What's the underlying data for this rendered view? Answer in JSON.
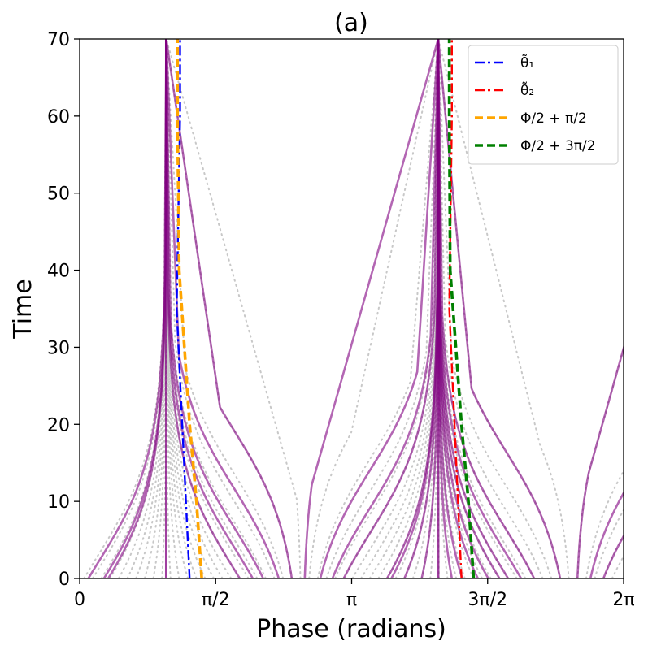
{
  "chart_data": {
    "type": "line",
    "title": "(a)",
    "xlabel": "Phase (radians)",
    "ylabel": "Time",
    "xlim": [
      0,
      6.2832
    ],
    "ylim": [
      0,
      70
    ],
    "grid": false,
    "x_ticks": [
      {
        "value": 0,
        "label": "0"
      },
      {
        "value": 1.5708,
        "label": "π/2"
      },
      {
        "value": 3.1416,
        "label": "π"
      },
      {
        "value": 4.7124,
        "label": "3π/2"
      },
      {
        "value": 6.2832,
        "label": "2π"
      }
    ],
    "y_ticks": [
      {
        "value": 0,
        "label": "0"
      },
      {
        "value": 10,
        "label": "10"
      },
      {
        "value": 20,
        "label": "20"
      },
      {
        "value": 30,
        "label": "30"
      },
      {
        "value": 40,
        "label": "40"
      },
      {
        "value": 50,
        "label": "50"
      },
      {
        "value": 60,
        "label": "60"
      },
      {
        "value": 70,
        "label": "70"
      }
    ],
    "legend_position": "top-right",
    "legend": [
      {
        "label": "θ̃₁",
        "color": "#0000ff",
        "style": "dashdot"
      },
      {
        "label": "θ̃₂",
        "color": "#ff0000",
        "style": "dashdot"
      },
      {
        "label": "Φ/2 + π/2",
        "color": "#ffa500",
        "style": "dashed"
      },
      {
        "label": "Φ/2 + 3π/2",
        "color": "#008000",
        "style": "dashed"
      }
    ],
    "attractors": [
      1.0,
      4.1416
    ],
    "background_trajectories": {
      "color": "#c8c8c8",
      "style": "dotted",
      "start_phases": [
        0.05,
        0.15,
        0.25,
        0.35,
        0.45,
        0.55,
        0.65,
        0.75,
        0.85,
        0.95,
        1.05,
        1.15,
        1.25,
        1.35,
        1.45,
        1.55,
        1.65,
        1.75,
        1.85,
        1.95,
        2.05,
        2.15,
        2.25,
        2.35,
        2.45,
        2.55,
        2.65,
        2.75,
        2.85,
        2.95,
        3.05,
        3.15,
        3.25,
        3.35,
        3.45,
        3.55,
        3.65,
        3.75,
        3.85,
        3.95,
        4.05,
        4.15,
        4.25,
        4.35,
        4.45,
        4.55,
        4.65,
        4.75,
        4.85,
        4.95,
        5.05,
        5.15,
        5.25,
        5.35,
        5.45,
        5.55,
        5.65,
        5.75,
        5.85,
        5.95,
        6.05,
        6.15
      ]
    },
    "highlighted_trajectories": {
      "color": "#800080",
      "start_phases": [
        0.1,
        0.28,
        0.33,
        1.85,
        2.0,
        2.12,
        2.3,
        2.45,
        2.6,
        2.78,
        2.92,
        3.05,
        3.55,
        3.6,
        3.75,
        3.95,
        4.3,
        4.42,
        4.6,
        4.72,
        4.85,
        4.95,
        5.1,
        5.25,
        5.55,
        5.75,
        5.9,
        6.05
      ]
    },
    "series": [
      {
        "name": "θ̃₁",
        "color": "#0000ff",
        "x": [
          1.27,
          1.12,
          1.16,
          1.16
        ],
        "y": [
          0,
          35,
          60,
          70
        ]
      },
      {
        "name": "θ̃₂",
        "color": "#ff0000",
        "x": [
          4.41,
          4.27,
          4.3,
          4.3
        ],
        "y": [
          0,
          35,
          60,
          70
        ]
      },
      {
        "name": "Φ/2 + π/2",
        "color": "#ffa500",
        "x": [
          1.41,
          1.35,
          1.27,
          1.15,
          1.13,
          1.13
        ],
        "y": [
          0,
          10,
          20,
          40,
          60,
          70
        ]
      },
      {
        "name": "Φ/2 + 3π/2",
        "color": "#008000",
        "x": [
          4.55,
          4.49,
          4.41,
          4.28,
          4.27,
          4.27
        ],
        "y": [
          0,
          10,
          20,
          40,
          60,
          70
        ]
      }
    ]
  }
}
